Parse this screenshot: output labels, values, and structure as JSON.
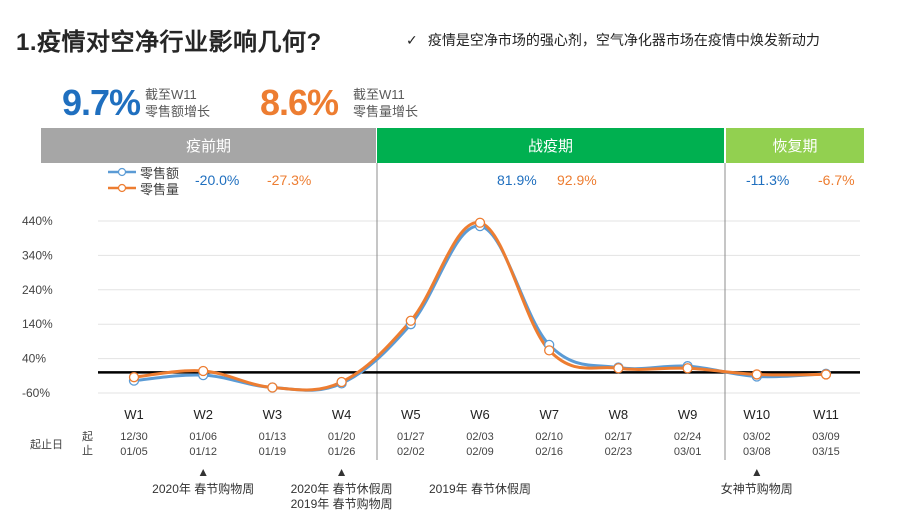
{
  "header": {
    "title": "1.疫情对空净行业影响几何?",
    "check_icon": "✓",
    "headline": "疫情是空净市场的强心剂，空气净化器市场在疫情中焕发新动力"
  },
  "kpis": [
    {
      "value": "9.7%",
      "label1": "截至W11",
      "label2": "零售额增长",
      "color": "#1f6fbf"
    },
    {
      "value": "8.6%",
      "label1": "截至W11",
      "label2": "零售量增长",
      "color": "#ed7d31"
    }
  ],
  "phases": [
    {
      "label": "疫前期",
      "color": "#a6a6a6"
    },
    {
      "label": "战疫期",
      "color": "#00b050"
    },
    {
      "label": "恢复期",
      "color": "#92d050"
    }
  ],
  "phase_summaries": [
    {
      "amount": "-20.0%",
      "volume": "-27.3%"
    },
    {
      "amount": "81.9%",
      "volume": "92.9%"
    },
    {
      "amount": "-11.3%",
      "volume": "-6.7%"
    }
  ],
  "row_labels": {
    "start_end": "起止日",
    "start_end_vertical": "起止"
  },
  "chart_data": {
    "type": "line",
    "categories": [
      "W1",
      "W2",
      "W3",
      "W4",
      "W5",
      "W6",
      "W7",
      "W8",
      "W9",
      "W10",
      "W11"
    ],
    "dates_start": [
      "12/30",
      "01/06",
      "01/13",
      "01/20",
      "01/27",
      "02/03",
      "02/10",
      "02/17",
      "02/24",
      "03/02",
      "03/09"
    ],
    "dates_end": [
      "01/05",
      "01/12",
      "01/19",
      "01/26",
      "02/02",
      "02/09",
      "02/16",
      "02/23",
      "03/01",
      "03/08",
      "03/15"
    ],
    "series": [
      {
        "name": "零售额",
        "color": "#5b9bd5",
        "values": [
          -24,
          -8,
          -44,
          -32,
          140,
          425,
          80,
          14,
          18,
          -12,
          -4
        ]
      },
      {
        "name": "零售量",
        "color": "#ed7d31",
        "values": [
          -14,
          4,
          -44,
          -28,
          150,
          435,
          64,
          12,
          12,
          -6,
          -6
        ]
      }
    ],
    "ylim": [
      -60,
      440
    ],
    "yticks": [
      -60,
      40,
      140,
      240,
      340,
      440
    ],
    "ytick_labels": [
      "-60%",
      "40%",
      "140%",
      "240%",
      "340%",
      "440%"
    ],
    "grid": true,
    "legend": "top-left",
    "annotations": [
      {
        "week": "W2",
        "lines": [
          "2020年 春节购物周"
        ],
        "marker": "▲"
      },
      {
        "week": "W4",
        "lines": [
          "2020年 春节休假周",
          "2019年 春节购物周"
        ],
        "marker": "▲"
      },
      {
        "week": "W6",
        "lines": [
          "2019年 春节休假周"
        ],
        "marker": ""
      },
      {
        "week": "W10",
        "lines": [
          "女神节购物周"
        ],
        "marker": "▲"
      }
    ]
  }
}
